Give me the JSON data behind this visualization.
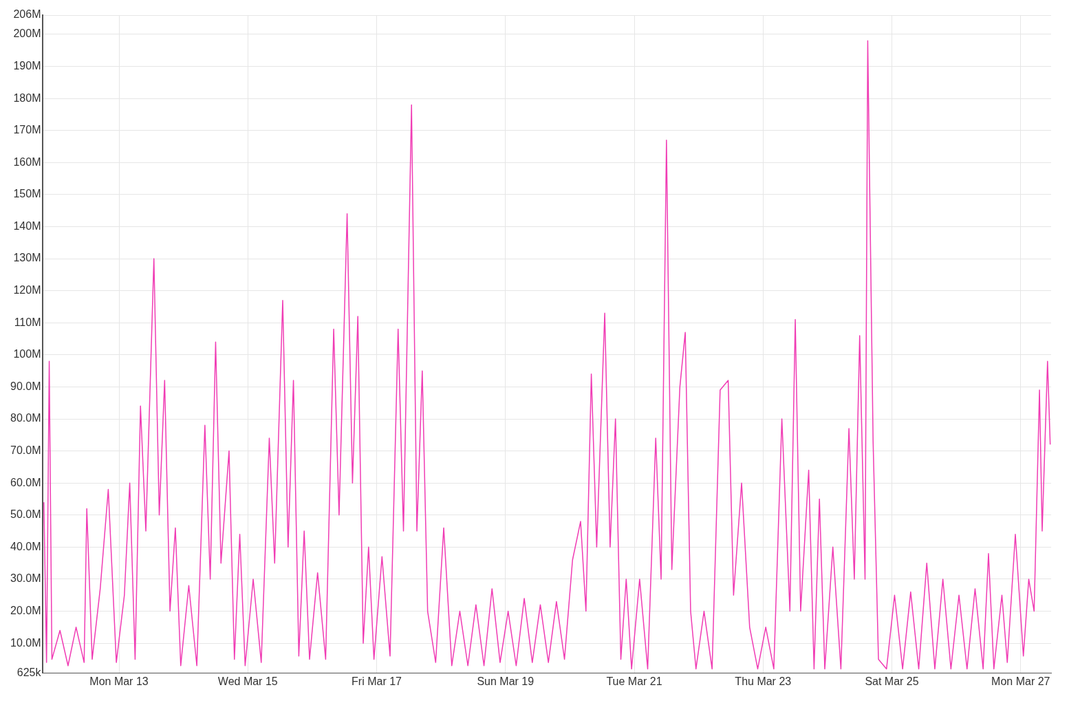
{
  "chart_data": {
    "type": "line",
    "color": "#f03cb4",
    "grid": true,
    "legend": false,
    "marker": "none",
    "line_style": "solid",
    "xlim": [
      "--03-11T19:40",
      "--03-27T11:20"
    ],
    "xticks": [
      {
        "value": "--03-13",
        "label": "Mon Mar 13"
      },
      {
        "value": "--03-15",
        "label": "Wed Mar 15"
      },
      {
        "value": "--03-17",
        "label": "Fri Mar 17"
      },
      {
        "value": "--03-19",
        "label": "Sun Mar 19"
      },
      {
        "value": "--03-21",
        "label": "Tue Mar 21"
      },
      {
        "value": "--03-23",
        "label": "Thu Mar 23"
      },
      {
        "value": "--03-25",
        "label": "Sat Mar 25"
      },
      {
        "value": "--03-27",
        "label": "Mon Mar 27"
      }
    ],
    "ylim": [
      625000,
      206000000
    ],
    "yticks": [
      {
        "value": 625000,
        "label": "625k"
      },
      {
        "value": 10000000,
        "label": "10.0M"
      },
      {
        "value": 20000000,
        "label": "20.0M"
      },
      {
        "value": 30000000,
        "label": "30.0M"
      },
      {
        "value": 40000000,
        "label": "40.0M"
      },
      {
        "value": 50000000,
        "label": "50.0M"
      },
      {
        "value": 60000000,
        "label": "60.0M"
      },
      {
        "value": 70000000,
        "label": "70.0M"
      },
      {
        "value": 80000000,
        "label": "80.0M"
      },
      {
        "value": 90000000,
        "label": "90.0M"
      },
      {
        "value": 100000000,
        "label": "100M"
      },
      {
        "value": 110000000,
        "label": "110M"
      },
      {
        "value": 120000000,
        "label": "120M"
      },
      {
        "value": 130000000,
        "label": "130M"
      },
      {
        "value": 140000000,
        "label": "140M"
      },
      {
        "value": 150000000,
        "label": "150M"
      },
      {
        "value": 160000000,
        "label": "160M"
      },
      {
        "value": 170000000,
        "label": "170M"
      },
      {
        "value": 180000000,
        "label": "180M"
      },
      {
        "value": 190000000,
        "label": "190M"
      },
      {
        "value": 200000000,
        "label": "200M"
      },
      {
        "value": 206000000,
        "label": "206M"
      }
    ],
    "x": [
      "--03-11T20:00",
      "--03-11T21:00",
      "--03-11T22:00",
      "--03-11T23:00",
      "--03-12T02:00",
      "--03-12T05:00",
      "--03-12T08:00",
      "--03-12T11:00",
      "--03-12T12:00",
      "--03-12T14:00",
      "--03-12T17:00",
      "--03-12T20:00",
      "--03-12T23:00",
      "--03-13T02:00",
      "--03-13T04:00",
      "--03-13T06:00",
      "--03-13T08:00",
      "--03-13T10:00",
      "--03-13T13:00",
      "--03-13T15:00",
      "--03-13T17:00",
      "--03-13T19:00",
      "--03-13T21:00",
      "--03-13T23:00",
      "--03-14T02:00",
      "--03-14T05:00",
      "--03-14T08:00",
      "--03-14T10:00",
      "--03-14T12:00",
      "--03-14T14:00",
      "--03-14T17:00",
      "--03-14T19:00",
      "--03-14T21:00",
      "--03-14T23:00",
      "--03-15T02:00",
      "--03-15T05:00",
      "--03-15T08:00",
      "--03-15T10:00",
      "--03-15T13:00",
      "--03-15T15:00",
      "--03-15T17:00",
      "--03-15T19:00",
      "--03-15T21:00",
      "--03-15T23:00",
      "--03-16T02:00",
      "--03-16T05:00",
      "--03-16T08:00",
      "--03-16T10:00",
      "--03-16T13:00",
      "--03-16T15:00",
      "--03-16T17:00",
      "--03-16T19:00",
      "--03-16T21:00",
      "--03-16T23:00",
      "--03-17T02:00",
      "--03-17T05:00",
      "--03-17T08:00",
      "--03-17T10:00",
      "--03-17T13:00",
      "--03-17T15:00",
      "--03-17T17:00",
      "--03-17T19:00",
      "--03-17T22:00",
      "--03-18T01:00",
      "--03-18T04:00",
      "--03-18T07:00",
      "--03-18T10:00",
      "--03-18T13:00",
      "--03-18T16:00",
      "--03-18T19:00",
      "--03-18T22:00",
      "--03-19T01:00",
      "--03-19T04:00",
      "--03-19T07:00",
      "--03-19T10:00",
      "--03-19T13:00",
      "--03-19T16:00",
      "--03-19T19:00",
      "--03-19T22:00",
      "--03-20T01:00",
      "--03-20T04:00",
      "--03-20T06:00",
      "--03-20T08:00",
      "--03-20T10:00",
      "--03-20T13:00",
      "--03-20T15:00",
      "--03-20T17:00",
      "--03-20T19:00",
      "--03-20T21:00",
      "--03-20T23:00",
      "--03-21T02:00",
      "--03-21T05:00",
      "--03-21T08:00",
      "--03-21T10:00",
      "--03-21T12:00",
      "--03-21T14:00",
      "--03-21T17:00",
      "--03-21T19:00",
      "--03-21T21:00",
      "--03-21T23:00",
      "--03-22T02:00",
      "--03-22T05:00",
      "--03-22T08:00",
      "--03-22T11:00",
      "--03-22T13:00",
      "--03-22T16:00",
      "--03-22T19:00",
      "--03-22T22:00",
      "--03-23T01:00",
      "--03-23T04:00",
      "--03-23T07:00",
      "--03-23T10:00",
      "--03-23T12:00",
      "--03-23T14:00",
      "--03-23T17:00",
      "--03-23T19:00",
      "--03-23T21:00",
      "--03-23T23:00",
      "--03-24T02:00",
      "--03-24T05:00",
      "--03-24T08:00",
      "--03-24T10:00",
      "--03-24T12:00",
      "--03-24T14:00",
      "--03-24T15:00",
      "--03-24T17:00",
      "--03-24T19:00",
      "--03-24T22:00",
      "--03-25T01:00",
      "--03-25T04:00",
      "--03-25T07:00",
      "--03-25T10:00",
      "--03-25T13:00",
      "--03-25T16:00",
      "--03-25T19:00",
      "--03-25T22:00",
      "--03-26T01:00",
      "--03-26T04:00",
      "--03-26T07:00",
      "--03-26T10:00",
      "--03-26T12:00",
      "--03-26T14:00",
      "--03-26T17:00",
      "--03-26T19:00",
      "--03-26T22:00",
      "--03-27T01:00",
      "--03-27T03:00",
      "--03-27T05:00",
      "--03-27T07:00",
      "--03-27T08:00",
      "--03-27T10:00",
      "--03-27T11:00"
    ],
    "values": [
      54000000,
      4000000,
      98000000,
      5000000,
      14000000,
      3000000,
      15000000,
      4000000,
      52000000,
      5000000,
      27000000,
      58000000,
      4000000,
      25000000,
      60000000,
      5000000,
      84000000,
      45000000,
      130000000,
      50000000,
      92000000,
      20000000,
      46000000,
      3000000,
      28000000,
      3000000,
      78000000,
      30000000,
      104000000,
      35000000,
      70000000,
      5000000,
      44000000,
      3000000,
      30000000,
      4000000,
      74000000,
      35000000,
      117000000,
      40000000,
      92000000,
      6000000,
      45000000,
      5000000,
      32000000,
      5000000,
      108000000,
      50000000,
      144000000,
      60000000,
      112000000,
      10000000,
      40000000,
      5000000,
      37000000,
      6000000,
      108000000,
      45000000,
      178000000,
      45000000,
      95000000,
      20000000,
      4000000,
      46000000,
      3000000,
      20000000,
      3000000,
      22000000,
      3000000,
      27000000,
      4000000,
      20000000,
      3000000,
      24000000,
      4000000,
      22000000,
      4000000,
      23000000,
      5000000,
      36000000,
      48000000,
      20000000,
      94000000,
      40000000,
      113000000,
      40000000,
      80000000,
      5000000,
      30000000,
      2000000,
      30000000,
      2000000,
      74000000,
      30000000,
      167000000,
      33000000,
      90000000,
      107000000,
      20000000,
      2000000,
      20000000,
      2000000,
      89000000,
      92000000,
      25000000,
      60000000,
      15000000,
      2000000,
      15000000,
      2000000,
      80000000,
      20000000,
      111000000,
      20000000,
      64000000,
      2000000,
      55000000,
      2000000,
      40000000,
      2000000,
      77000000,
      30000000,
      106000000,
      30000000,
      198000000,
      73000000,
      5000000,
      2000000,
      25000000,
      2000000,
      26000000,
      2000000,
      35000000,
      2000000,
      30000000,
      2000000,
      25000000,
      2000000,
      27000000,
      2000000,
      38000000,
      2000000,
      25000000,
      4000000,
      44000000,
      6000000,
      30000000,
      20000000,
      89000000,
      45000000,
      98000000,
      72000000
    ]
  }
}
